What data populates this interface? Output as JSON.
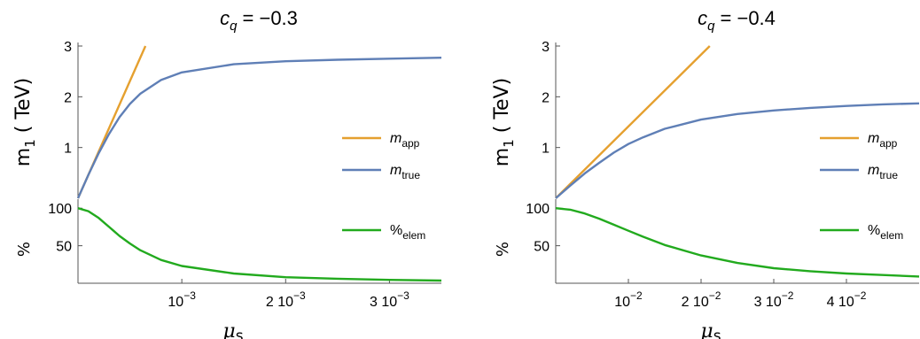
{
  "chart_data": [
    {
      "type": "line",
      "title": "c_q = −0.3",
      "title_parts": {
        "main": "c",
        "sub": "q",
        "rest": " = −0.3"
      },
      "xlabel": "μ_s",
      "xlabel_parts": {
        "main": "μ",
        "sub": "s"
      },
      "xlim": [
        0,
        0.0035
      ],
      "x_ticks": [
        0.001,
        0.002,
        0.003
      ],
      "x_tick_labels": [
        {
          "main": "10",
          "sup": "−3"
        },
        {
          "main": "2 10",
          "sup": "−3"
        },
        {
          "main": "3 10",
          "sup": "−3"
        }
      ],
      "top": {
        "ylabel": "m₁ ( TeV)",
        "ylabel_parts": {
          "main": "m",
          "sub": "1",
          "rest": " ( TeV)"
        },
        "ylim": [
          0,
          3
        ],
        "y_ticks": [
          1,
          2,
          3
        ],
        "y_tick_labels": [
          "1",
          "2",
          "3"
        ],
        "series": [
          {
            "name": "m_app",
            "label_parts": {
              "main": "m",
              "sub": "app"
            },
            "color": "#e5a02f",
            "x": [
              0,
              0.00065
            ],
            "y": [
              0,
              3.0
            ]
          },
          {
            "name": "m_true",
            "label_parts": {
              "main": "m",
              "sub": "true"
            },
            "color": "#5f7fb6",
            "x": [
              0,
              0.0001,
              0.0002,
              0.0003,
              0.0004,
              0.0005,
              0.0006,
              0.0008,
              0.001,
              0.0015,
              0.002,
              0.0025,
              0.003,
              0.0035
            ],
            "y": [
              0,
              0.46,
              0.89,
              1.27,
              1.6,
              1.86,
              2.06,
              2.33,
              2.48,
              2.64,
              2.7,
              2.73,
              2.75,
              2.77
            ]
          }
        ],
        "legend_position": "right"
      },
      "bottom": {
        "ylabel": "%",
        "ylim": [
          0,
          105
        ],
        "y_ticks": [
          50,
          100
        ],
        "y_tick_labels": [
          "50",
          "100"
        ],
        "series": [
          {
            "name": "%_elem",
            "label_parts": {
              "main": "%",
              "sub": "elem"
            },
            "color": "#22aa1e",
            "x": [
              0,
              0.0001,
              0.0002,
              0.0003,
              0.0004,
              0.0005,
              0.0006,
              0.0008,
              0.001,
              0.0015,
              0.002,
              0.0025,
              0.003,
              0.0035
            ],
            "y": [
              100,
              96,
              87,
              75,
              63,
              53,
              44,
              31,
              23,
              13,
              8,
              6,
              4.5,
              3.5
            ]
          }
        ],
        "legend_position": "right"
      }
    },
    {
      "type": "line",
      "title": "c_q = −0.4",
      "title_parts": {
        "main": "c",
        "sub": "q",
        "rest": " = −0.4"
      },
      "xlabel": "μ_s",
      "xlabel_parts": {
        "main": "μ",
        "sub": "s"
      },
      "xlim": [
        0,
        0.05
      ],
      "x_ticks": [
        0.01,
        0.02,
        0.03,
        0.04
      ],
      "x_tick_labels": [
        {
          "main": "10",
          "sup": "−2"
        },
        {
          "main": "2 10",
          "sup": "−2"
        },
        {
          "main": "3 10",
          "sup": "−2"
        },
        {
          "main": "4 10",
          "sup": "−2"
        }
      ],
      "top": {
        "ylabel": "m₁ ( TeV)",
        "ylabel_parts": {
          "main": "m",
          "sub": "1",
          "rest": " ( TeV)"
        },
        "ylim": [
          0,
          3
        ],
        "y_ticks": [
          1,
          2,
          3
        ],
        "y_tick_labels": [
          "1",
          "2",
          "3"
        ],
        "series": [
          {
            "name": "m_app",
            "label_parts": {
              "main": "m",
              "sub": "app"
            },
            "color": "#e5a02f",
            "x": [
              0,
              0.0212
            ],
            "y": [
              0,
              3.0
            ]
          },
          {
            "name": "m_true",
            "label_parts": {
              "main": "m",
              "sub": "true"
            },
            "color": "#5f7fb6",
            "x": [
              0,
              0.002,
              0.004,
              0.006,
              0.008,
              0.01,
              0.012,
              0.015,
              0.02,
              0.025,
              0.03,
              0.035,
              0.04,
              0.045,
              0.05
            ],
            "y": [
              0,
              0.25,
              0.49,
              0.7,
              0.9,
              1.07,
              1.2,
              1.37,
              1.55,
              1.66,
              1.73,
              1.78,
              1.82,
              1.85,
              1.87
            ]
          }
        ],
        "legend_position": "right"
      },
      "bottom": {
        "ylabel": "%",
        "ylim": [
          0,
          105
        ],
        "y_ticks": [
          50,
          100
        ],
        "y_tick_labels": [
          "50",
          "100"
        ],
        "series": [
          {
            "name": "%_elem",
            "label_parts": {
              "main": "%",
              "sub": "elem"
            },
            "color": "#22aa1e",
            "x": [
              0,
              0.002,
              0.004,
              0.006,
              0.008,
              0.01,
              0.012,
              0.015,
              0.02,
              0.025,
              0.03,
              0.035,
              0.04,
              0.045,
              0.05
            ],
            "y": [
              100,
              98,
              93,
              86,
              78,
              70,
              62,
              51,
              37,
              27,
              20,
              16,
              13,
              11,
              9
            ]
          }
        ],
        "legend_position": "right"
      }
    }
  ]
}
